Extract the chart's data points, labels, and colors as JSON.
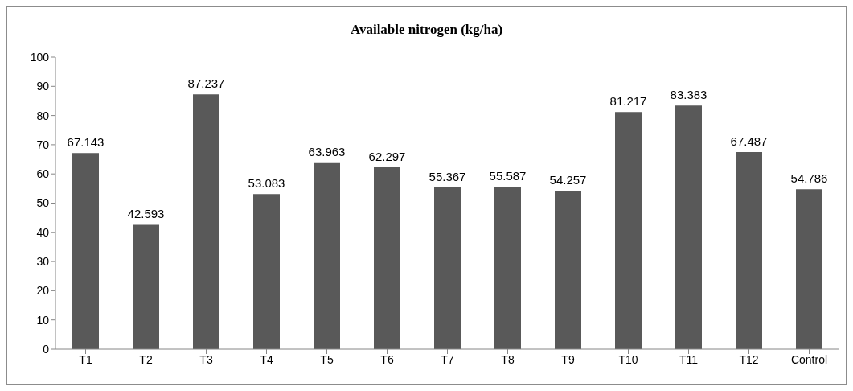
{
  "chart_data": {
    "type": "bar",
    "title": "Available nitrogen (kg/ha)",
    "categories": [
      "T1",
      "T2",
      "T3",
      "T4",
      "T5",
      "T6",
      "T7",
      "T8",
      "T9",
      "T10",
      "T11",
      "T12",
      "Control"
    ],
    "values": [
      67.143,
      42.593,
      87.237,
      53.083,
      63.963,
      62.297,
      55.367,
      55.587,
      54.257,
      81.217,
      83.383,
      67.487,
      54.786
    ],
    "color": "#595959",
    "ylim": [
      0,
      100
    ],
    "yticks": [
      0,
      10,
      20,
      30,
      40,
      50,
      60,
      70,
      80,
      90,
      100
    ],
    "data_labels": true,
    "grid": false
  }
}
